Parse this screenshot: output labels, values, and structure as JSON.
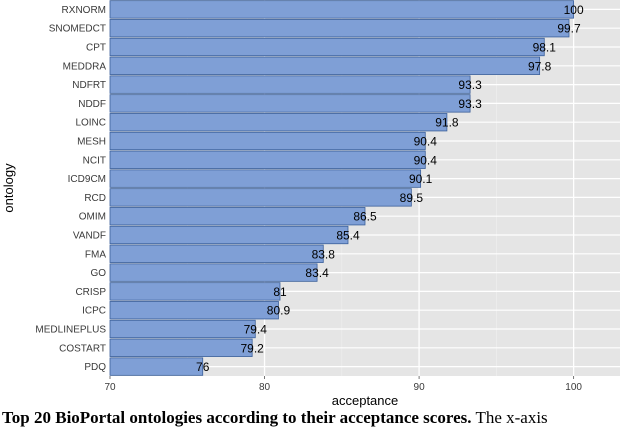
{
  "chart_data": {
    "type": "bar",
    "orientation": "horizontal",
    "categories": [
      "RXNORM",
      "SNOMEDCT",
      "CPT",
      "MEDDRA",
      "NDFRT",
      "NDDF",
      "LOINC",
      "MESH",
      "NCIT",
      "ICD9CM",
      "RCD",
      "OMIM",
      "VANDF",
      "FMA",
      "GO",
      "CRISP",
      "ICPC",
      "MEDLINEPLUS",
      "COSTART",
      "PDQ"
    ],
    "values": [
      100,
      99.7,
      98.1,
      97.8,
      93.3,
      93.3,
      91.8,
      90.4,
      90.4,
      90.1,
      89.5,
      86.5,
      85.4,
      83.8,
      83.4,
      81,
      80.9,
      79.4,
      79.2,
      76
    ],
    "value_labels": [
      "100",
      "99.7",
      "98.1",
      "97.8",
      "93.3",
      "93.3",
      "91.8",
      "90.4",
      "90.4",
      "90.1",
      "89.5",
      "86.5",
      "85.4",
      "83.8",
      "83.4",
      "81",
      "80.9",
      "79.4",
      "79.2",
      "76"
    ],
    "xlabel": "acceptance",
    "ylabel": "ontology",
    "xlim": [
      70,
      103
    ],
    "x_ticks": [
      "70",
      "80",
      "90",
      "100"
    ],
    "grid": true,
    "colors": {
      "bar_fill": "#7f9fd6",
      "bar_stroke": "#3b5f9a",
      "panel": "#e5e5e5",
      "grid": "#ffffff"
    }
  },
  "caption": {
    "bold": "Top 20 BioPortal ontologies according to their acceptance scores.",
    "rest": " The x-axis"
  }
}
